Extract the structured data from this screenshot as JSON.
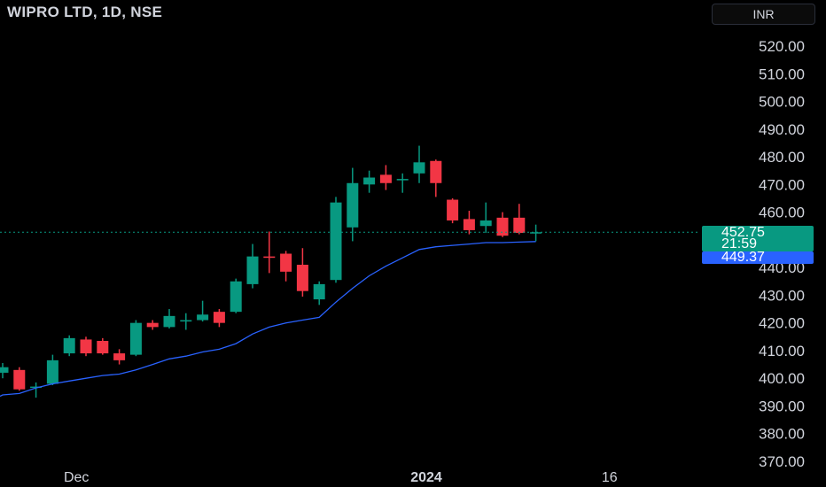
{
  "header": {
    "title": "WIPRO LTD, 1D, NSE",
    "currency": "INR"
  },
  "colors": {
    "up": "#089981",
    "down": "#f23645",
    "ma": "#2962ff",
    "axis_text": "#d1d4dc"
  },
  "price_tag": {
    "value": "452.75",
    "countdown": "21:59"
  },
  "ma_tag": {
    "value": "449.37"
  },
  "chart_data": {
    "type": "candlestick",
    "title": "WIPRO LTD, 1D, NSE",
    "ylim": [
      370,
      522
    ],
    "y_ticks": [
      "370.00",
      "380.00",
      "390.00",
      "400.00",
      "410.00",
      "420.00",
      "430.00",
      "440.00",
      "450.00",
      "460.00",
      "470.00",
      "480.00",
      "490.00",
      "500.00",
      "510.00",
      "520.00"
    ],
    "x_ticks": [
      {
        "label": "Dec",
        "candle_index": 4
      },
      {
        "label": "2024",
        "candle_index": 25
      },
      {
        "label": "16",
        "candle_index": 36
      }
    ],
    "last_price": 452.75,
    "candles": [
      {
        "o": 402.0,
        "h": 405.5,
        "l": 400.0,
        "c": 404.0
      },
      {
        "o": 403.0,
        "h": 404.0,
        "l": 395.5,
        "c": 396.0
      },
      {
        "o": 397.0,
        "h": 398.5,
        "l": 393.0,
        "c": 397.0
      },
      {
        "o": 398.0,
        "h": 408.5,
        "l": 397.5,
        "c": 406.5
      },
      {
        "o": 409.0,
        "h": 415.5,
        "l": 408.0,
        "c": 414.5
      },
      {
        "o": 414.0,
        "h": 415.0,
        "l": 408.0,
        "c": 409.0
      },
      {
        "o": 413.5,
        "h": 414.5,
        "l": 408.5,
        "c": 409.0
      },
      {
        "o": 409.0,
        "h": 410.5,
        "l": 405.0,
        "c": 406.5
      },
      {
        "o": 408.5,
        "h": 421.0,
        "l": 408.0,
        "c": 420.0
      },
      {
        "o": 420.0,
        "h": 421.0,
        "l": 417.5,
        "c": 418.5
      },
      {
        "o": 418.5,
        "h": 425.0,
        "l": 418.0,
        "c": 422.5
      },
      {
        "o": 420.5,
        "h": 423.5,
        "l": 417.5,
        "c": 421.0
      },
      {
        "o": 421.0,
        "h": 428.0,
        "l": 420.5,
        "c": 423.0
      },
      {
        "o": 424.0,
        "h": 425.0,
        "l": 418.5,
        "c": 420.0
      },
      {
        "o": 424.0,
        "h": 436.0,
        "l": 423.5,
        "c": 435.0
      },
      {
        "o": 434.0,
        "h": 448.5,
        "l": 432.5,
        "c": 444.0
      },
      {
        "o": 444.0,
        "h": 453.0,
        "l": 438.0,
        "c": 443.5
      },
      {
        "o": 445.0,
        "h": 446.0,
        "l": 435.0,
        "c": 438.5
      },
      {
        "o": 441.0,
        "h": 447.0,
        "l": 429.5,
        "c": 431.5
      },
      {
        "o": 428.5,
        "h": 435.0,
        "l": 426.5,
        "c": 434.0
      },
      {
        "o": 435.5,
        "h": 465.5,
        "l": 434.5,
        "c": 463.5
      },
      {
        "o": 454.5,
        "h": 476.0,
        "l": 449.5,
        "c": 470.5
      },
      {
        "o": 470.0,
        "h": 475.0,
        "l": 467.0,
        "c": 472.5
      },
      {
        "o": 473.5,
        "h": 477.0,
        "l": 468.0,
        "c": 470.5
      },
      {
        "o": 471.5,
        "h": 474.0,
        "l": 467.0,
        "c": 472.0
      },
      {
        "o": 474.0,
        "h": 484.0,
        "l": 470.5,
        "c": 478.0
      },
      {
        "o": 478.5,
        "h": 479.0,
        "l": 465.5,
        "c": 470.5
      },
      {
        "o": 464.5,
        "h": 465.0,
        "l": 456.0,
        "c": 457.0
      },
      {
        "o": 457.5,
        "h": 460.5,
        "l": 452.0,
        "c": 453.5
      },
      {
        "o": 455.0,
        "h": 463.5,
        "l": 452.5,
        "c": 457.0
      },
      {
        "o": 458.0,
        "h": 460.0,
        "l": 451.0,
        "c": 451.5
      },
      {
        "o": 458.0,
        "h": 463.0,
        "l": 452.0,
        "c": 452.5
      },
      {
        "o": 452.5,
        "h": 455.5,
        "l": 449.5,
        "c": 452.75
      }
    ],
    "ma_series": {
      "x_index": [
        -2,
        0,
        1,
        2,
        3,
        4,
        5,
        6,
        7,
        8,
        9,
        10,
        11,
        12,
        13,
        14,
        15,
        16,
        17,
        18,
        19,
        20,
        21,
        22,
        23,
        24,
        25,
        26,
        27,
        28,
        29,
        30,
        31,
        32
      ],
      "values": [
        393.5,
        394.0,
        394.5,
        396.5,
        398.0,
        399.0,
        400.0,
        401.0,
        401.5,
        403.0,
        405.0,
        407.0,
        408.0,
        409.5,
        410.5,
        412.5,
        416.0,
        418.5,
        420.0,
        421.0,
        422.0,
        427.5,
        432.5,
        437.0,
        440.5,
        443.5,
        446.5,
        447.5,
        448.0,
        448.5,
        449.0,
        449.0,
        449.2,
        449.37
      ]
    }
  }
}
